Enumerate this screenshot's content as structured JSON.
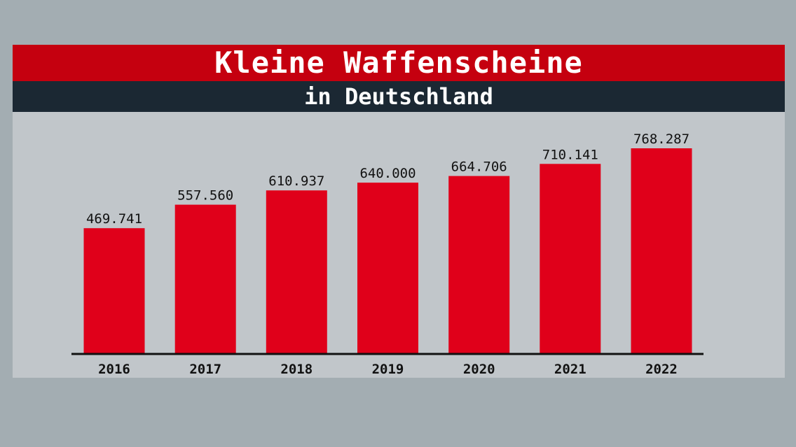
{
  "header": {
    "title": "Kleine Waffenscheine",
    "subtitle": "in Deutschland"
  },
  "colors": {
    "background": "#a3adb2",
    "panel": "#c1c6ca",
    "title_bar": "#c5000f",
    "subtitle_bar": "#1b2833",
    "bar": "#e0001a"
  },
  "chart_data": {
    "type": "bar",
    "title": "Kleine Waffenscheine",
    "subtitle": "in Deutschland",
    "xlabel": "",
    "ylabel": "",
    "categories": [
      "2016",
      "2017",
      "2018",
      "2019",
      "2020",
      "2021",
      "2022"
    ],
    "values": [
      469741,
      557560,
      610937,
      640000,
      664706,
      710141,
      768287
    ],
    "value_labels": [
      "469.741",
      "557.560",
      "610.937",
      "640.000",
      "664.706",
      "710.141",
      "768.287"
    ],
    "ylim": [
      0,
      768287
    ],
    "grid": false,
    "legend": "none"
  }
}
